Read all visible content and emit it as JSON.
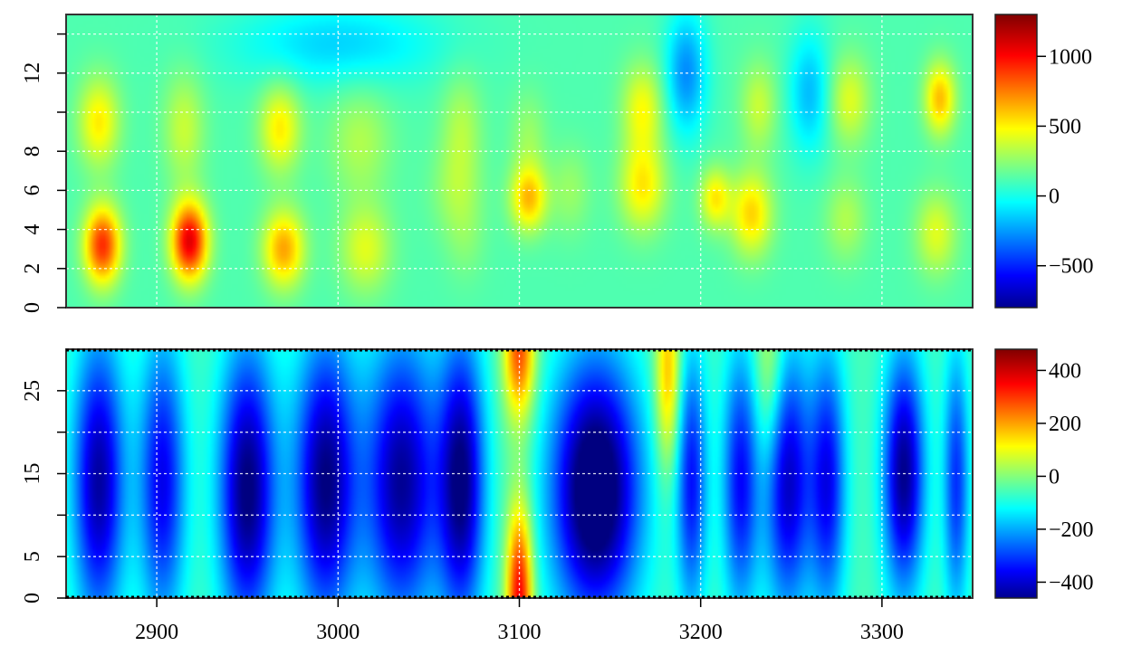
{
  "chart_data": [
    {
      "type": "heatmap",
      "title": "",
      "xlabel": "",
      "ylabel": "",
      "xlim": [
        2850,
        3350
      ],
      "ylim": [
        0,
        15
      ],
      "x_ticks": [
        2900,
        3000,
        3100,
        3200,
        3300
      ],
      "y_ticks": [
        0,
        2,
        4,
        6,
        8,
        10,
        12,
        14
      ],
      "y_tick_labels": [
        {
          "value": 0,
          "label": "0"
        },
        {
          "value": 2,
          "label": "2"
        },
        {
          "value": 4,
          "label": "4"
        },
        {
          "value": 6,
          "label": "6"
        },
        {
          "value": 8,
          "label": "8"
        },
        {
          "value": 12,
          "label": "12"
        }
      ],
      "grid": true,
      "background_value": 150,
      "colorbar": {
        "range": [
          -800,
          1300
        ],
        "ticks": [
          {
            "value": 1000,
            "label": "1000"
          },
          {
            "value": 500,
            "label": "500"
          },
          {
            "value": 0,
            "label": "0"
          },
          {
            "value": -500,
            "label": "−500"
          }
        ]
      },
      "blobs": [
        {
          "x": 2870,
          "y": 3.2,
          "value": 950,
          "sx": 7,
          "sy": 1.4
        },
        {
          "x": 2918,
          "y": 3.4,
          "value": 1100,
          "sx": 7,
          "sy": 1.4
        },
        {
          "x": 2970,
          "y": 3.0,
          "value": 700,
          "sx": 8,
          "sy": 1.4
        },
        {
          "x": 3015,
          "y": 3.0,
          "value": 450,
          "sx": 10,
          "sy": 1.6
        },
        {
          "x": 3070,
          "y": 3.5,
          "value": 250,
          "sx": 8,
          "sy": 1.6
        },
        {
          "x": 3228,
          "y": 4.8,
          "value": 600,
          "sx": 8,
          "sy": 1.5
        },
        {
          "x": 3280,
          "y": 4.5,
          "value": 350,
          "sx": 8,
          "sy": 1.5
        },
        {
          "x": 3330,
          "y": 3.8,
          "value": 450,
          "sx": 8,
          "sy": 1.5
        },
        {
          "x": 2868,
          "y": 9.5,
          "value": 550,
          "sx": 8,
          "sy": 1.6
        },
        {
          "x": 2915,
          "y": 9.2,
          "value": 400,
          "sx": 8,
          "sy": 2.0
        },
        {
          "x": 2968,
          "y": 9.2,
          "value": 550,
          "sx": 8,
          "sy": 1.6
        },
        {
          "x": 3012,
          "y": 8.5,
          "value": 350,
          "sx": 12,
          "sy": 2.0
        },
        {
          "x": 3068,
          "y": 9.2,
          "value": 350,
          "sx": 8,
          "sy": 2.0
        },
        {
          "x": 3065,
          "y": 6.0,
          "value": 300,
          "sx": 10,
          "sy": 1.6
        },
        {
          "x": 3105,
          "y": 5.6,
          "value": 650,
          "sx": 7,
          "sy": 1.2
        },
        {
          "x": 3105,
          "y": 8.8,
          "value": 300,
          "sx": 7,
          "sy": 1.6
        },
        {
          "x": 3128,
          "y": 6.0,
          "value": 300,
          "sx": 8,
          "sy": 1.6
        },
        {
          "x": 3168,
          "y": 6.2,
          "value": 550,
          "sx": 9,
          "sy": 1.6
        },
        {
          "x": 3168,
          "y": 10.2,
          "value": 500,
          "sx": 8,
          "sy": 1.6
        },
        {
          "x": 3208,
          "y": 5.6,
          "value": 550,
          "sx": 6,
          "sy": 1.1
        },
        {
          "x": 3232,
          "y": 10.3,
          "value": 400,
          "sx": 7,
          "sy": 1.6
        },
        {
          "x": 3282,
          "y": 10.6,
          "value": 450,
          "sx": 8,
          "sy": 1.6
        },
        {
          "x": 3332,
          "y": 10.7,
          "value": 650,
          "sx": 6,
          "sy": 1.3
        },
        {
          "x": 3192,
          "y": 12.0,
          "value": -250,
          "sx": 8,
          "sy": 2.2
        },
        {
          "x": 3260,
          "y": 11.0,
          "value": -150,
          "sx": 8,
          "sy": 2.2
        },
        {
          "x": 3000,
          "y": 13.5,
          "value": -100,
          "sx": 40,
          "sy": 1.5
        }
      ]
    },
    {
      "type": "heatmap",
      "title": "",
      "xlabel": "",
      "ylabel": "",
      "xlim": [
        2850,
        3350
      ],
      "ylim": [
        0,
        30
      ],
      "x_ticks": [
        2900,
        3000,
        3100,
        3200,
        3300
      ],
      "x_tick_labels": [
        "2900",
        "3000",
        "3100",
        "3200",
        "3300"
      ],
      "y_ticks": [
        0,
        5,
        10,
        15,
        20,
        25
      ],
      "y_tick_labels": [
        {
          "value": 0,
          "label": "0"
        },
        {
          "value": 5,
          "label": "5"
        },
        {
          "value": 15,
          "label": "15"
        },
        {
          "value": 25,
          "label": "25"
        }
      ],
      "grid": true,
      "background_value": -40,
      "colorbar": {
        "range": [
          -460,
          480
        ],
        "ticks": [
          {
            "value": 400,
            "label": "400"
          },
          {
            "value": 200,
            "label": "200"
          },
          {
            "value": 0,
            "label": "0"
          },
          {
            "value": -200,
            "label": "−200"
          },
          {
            "value": -400,
            "label": "−400"
          }
        ]
      },
      "columns": [
        {
          "x": 2868,
          "value": -430,
          "width": 10,
          "y": 14,
          "height": 12
        },
        {
          "x": 2903,
          "value": -360,
          "width": 9,
          "y": 14,
          "height": 12
        },
        {
          "x": 2950,
          "value": -470,
          "width": 11,
          "y": 13,
          "height": 12
        },
        {
          "x": 2993,
          "value": -460,
          "width": 12,
          "y": 14,
          "height": 12
        },
        {
          "x": 3035,
          "value": -440,
          "width": 14,
          "y": 14,
          "height": 12
        },
        {
          "x": 3068,
          "value": -460,
          "width": 9,
          "y": 14,
          "height": 12
        },
        {
          "x": 3142,
          "value": -560,
          "width": 17,
          "y": 13,
          "height": 11
        },
        {
          "x": 3195,
          "value": -330,
          "width": 6,
          "y": 14,
          "height": 11
        },
        {
          "x": 3222,
          "value": -340,
          "width": 7,
          "y": 14,
          "height": 11
        },
        {
          "x": 3248,
          "value": -400,
          "width": 9,
          "y": 14,
          "height": 11
        },
        {
          "x": 3270,
          "value": -350,
          "width": 7,
          "y": 14,
          "height": 11
        },
        {
          "x": 3312,
          "value": -450,
          "width": 8,
          "y": 15,
          "height": 10
        },
        {
          "x": 3341,
          "value": -300,
          "width": 5,
          "y": 14,
          "height": 11
        },
        {
          "x": 3100,
          "value": 380,
          "width": 5,
          "y": 0,
          "height": 8
        },
        {
          "x": 3100,
          "value": 300,
          "width": 6,
          "y": 30,
          "height": 6
        },
        {
          "x": 3182,
          "value": 200,
          "width": 5,
          "y": 27,
          "height": 8
        },
        {
          "x": 3238,
          "value": 100,
          "width": 6,
          "y": 27,
          "height": 8
        }
      ]
    }
  ]
}
